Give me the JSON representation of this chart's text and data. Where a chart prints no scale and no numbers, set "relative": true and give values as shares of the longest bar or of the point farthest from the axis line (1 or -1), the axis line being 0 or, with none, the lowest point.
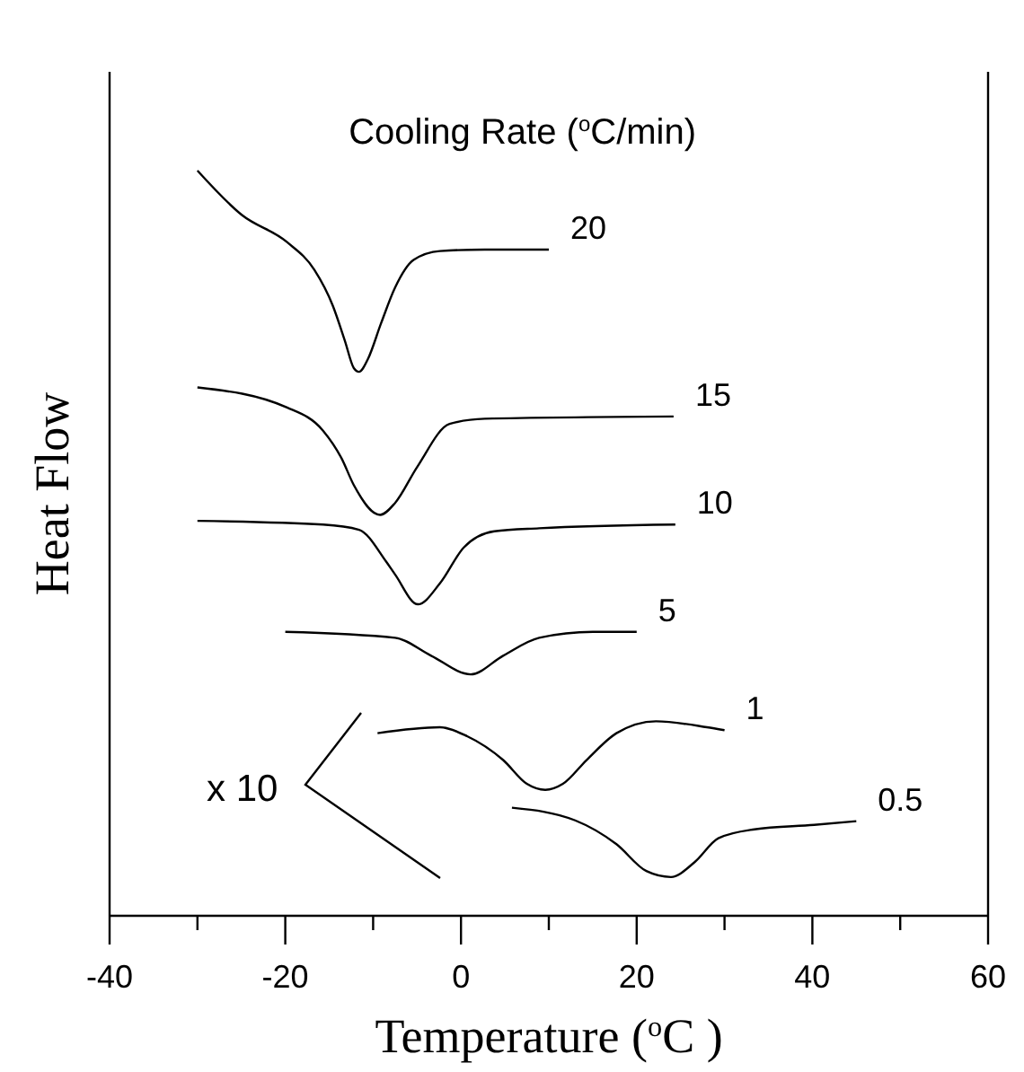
{
  "chart_data": {
    "type": "line",
    "title": "Cooling Rate ($^{o}$C/min)",
    "xlabel": "Temperature ($^{o}$C )",
    "ylabel": "Heat Flow",
    "relative": true,
    "xlim": [
      -40,
      60
    ],
    "xticks": [
      -40,
      {
        "value": -30,
        "label": null
      },
      -20,
      {
        "value": -10,
        "label": null
      },
      0,
      {
        "value": 10,
        "label": null
      },
      20,
      {
        "value": 30,
        "label": null
      },
      40,
      {
        "value": 50,
        "label": null
      },
      60
    ],
    "tick_labels": "x",
    "grid": false,
    "marker": "none",
    "line_style": "solid",
    "annotations": [
      "x 10"
    ],
    "series": [
      {
        "name": "20",
        "color": "#000000",
        "x": [
          -30,
          -24.9,
          -19.8,
          -16.7,
          -14.6,
          -13.2,
          -12.2,
          -11.6,
          -10.6,
          -9.1,
          -7.5,
          -5.4,
          -2.4,
          2.7,
          10
        ],
        "values": [
          1.0,
          0.94,
          0.904,
          0.867,
          0.819,
          0.771,
          0.735,
          0.73,
          0.747,
          0.795,
          0.843,
          0.88,
          0.892,
          0.894,
          0.894
        ]
      },
      {
        "name": "15",
        "color": "#000000",
        "x": [
          -30,
          -19.8,
          -15.7,
          -13.6,
          -12.2,
          -9.2,
          -7.5,
          -5,
          -1.3,
          2.7,
          24.2
        ],
        "values": [
          0.709,
          0.682,
          0.651,
          0.614,
          0.578,
          0.538,
          0.554,
          0.602,
          0.66,
          0.667,
          0.67
        ]
      },
      {
        "name": "10",
        "color": "#000000",
        "x": [
          -30,
          -15.7,
          -11.6,
          -8.5,
          -7.5,
          -4.9,
          -2.4,
          0.3,
          3.8,
          8.9,
          24.4
        ],
        "values": [
          0.53,
          0.525,
          0.518,
          0.475,
          0.458,
          0.418,
          0.446,
          0.494,
          0.516,
          0.52,
          0.525
        ]
      },
      {
        "name": "5",
        "color": "#000000",
        "x": [
          -20,
          -7.5,
          -3.4,
          1.1,
          4.8,
          8.9,
          15,
          20
        ],
        "values": [
          0.381,
          0.373,
          0.349,
          0.324,
          0.349,
          0.373,
          0.381,
          0.381
        ]
      },
      {
        "name": "1",
        "color": "#000000",
        "x": [
          -9.5,
          -2.4,
          0.7,
          4.8,
          7.5,
          9.6,
          11.6,
          14.3,
          17.7,
          22.2,
          28,
          30
        ],
        "values": [
          0.245,
          0.253,
          0.241,
          0.209,
          0.177,
          0.169,
          0.177,
          0.209,
          0.245,
          0.261,
          0.253,
          0.249
        ]
      },
      {
        "name": "0.5",
        "color": "#000000",
        "x": [
          5.8,
          13,
          17.7,
          21.1,
          23.9,
          26.6,
          29.3,
          33.4,
          40.2,
          45
        ],
        "values": [
          0.145,
          0.128,
          0.096,
          0.06,
          0.052,
          0.072,
          0.104,
          0.116,
          0.122,
          0.127
        ]
      }
    ]
  }
}
